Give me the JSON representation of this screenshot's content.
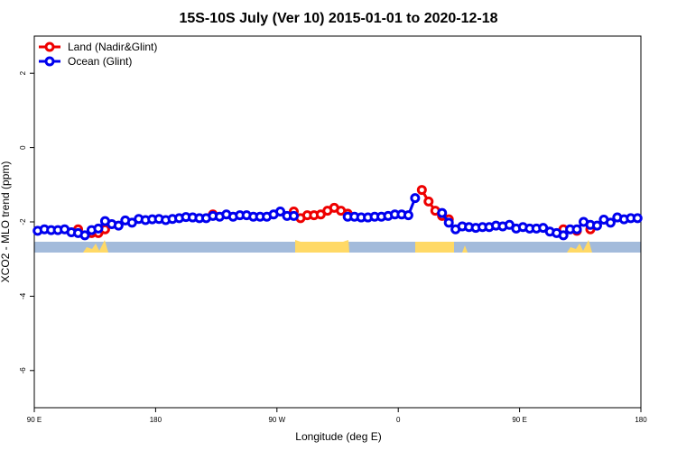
{
  "chart_data": {
    "type": "line",
    "title": "15S-10S July (Ver 10)   2015-01-01 to 2020-12-18",
    "x_label": "Longitude (deg E)",
    "y_label": "XCO2 - MLO trend (ppm)",
    "legend": "topleft",
    "xlim": [
      90,
      540
    ],
    "ylim": [
      -7,
      3
    ],
    "xticks": [
      {
        "value": 90,
        "label": "90 E"
      },
      180,
      {
        "value": 270,
        "label": "90 W"
      },
      {
        "value": 360,
        "label": "0"
      },
      {
        "value": 450,
        "label": "90 E"
      },
      {
        "value": 540,
        "label": "180"
      }
    ],
    "yticks": [
      -6,
      -4,
      -2,
      0,
      2
    ],
    "x": [
      92.5,
      97.5,
      102.5,
      107.5,
      112.5,
      117.5,
      122.5,
      127.5,
      132.5,
      137.5,
      142.5,
      147.5,
      152.5,
      157.5,
      162.5,
      167.5,
      172.5,
      177.5,
      182.5,
      187.5,
      192.5,
      197.5,
      202.5,
      207.5,
      212.5,
      217.5,
      222.5,
      227.5,
      232.5,
      237.5,
      242.5,
      247.5,
      252.5,
      257.5,
      262.5,
      267.5,
      272.5,
      277.5,
      282.5,
      287.5,
      292.5,
      297.5,
      302.5,
      307.5,
      312.5,
      317.5,
      322.5,
      327.5,
      332.5,
      337.5,
      342.5,
      347.5,
      352.5,
      357.5,
      362.5,
      367.5,
      372.5,
      377.5,
      382.5,
      387.5,
      392.5,
      397.5,
      402.5,
      407.5,
      412.5,
      417.5,
      422.5,
      427.5,
      432.5,
      437.5,
      442.5,
      447.5,
      452.5,
      457.5,
      462.5,
      467.5,
      472.5,
      477.5,
      482.5,
      487.5,
      492.5,
      497.5,
      502.5,
      507.5,
      512.5,
      517.5,
      522.5,
      527.5,
      532.5,
      537.5
    ],
    "series": [
      {
        "name": "Land (Nadir&Glint)",
        "color": "#ee0000",
        "values": [
          null,
          null,
          null,
          null,
          null,
          null,
          -2.2,
          null,
          -2.3,
          -2.3,
          -2.2,
          null,
          null,
          null,
          null,
          null,
          null,
          null,
          null,
          null,
          null,
          null,
          null,
          null,
          null,
          null,
          -1.8,
          null,
          null,
          null,
          null,
          null,
          null,
          null,
          null,
          null,
          null,
          null,
          -1.72,
          -1.9,
          -1.82,
          -1.82,
          -1.8,
          -1.7,
          -1.62,
          -1.7,
          -1.78,
          null,
          null,
          null,
          null,
          null,
          null,
          null,
          null,
          null,
          null,
          -1.14,
          -1.45,
          -1.7,
          -1.84,
          -1.93,
          null,
          null,
          null,
          null,
          null,
          null,
          null,
          null,
          null,
          null,
          null,
          null,
          null,
          null,
          null,
          null,
          -2.2,
          null,
          -2.24,
          null,
          -2.2,
          null,
          null,
          null,
          null,
          null,
          null,
          null
        ]
      },
      {
        "name": "Ocean (Glint)",
        "color": "#0000ee",
        "values": [
          -2.24,
          -2.2,
          -2.22,
          -2.22,
          -2.2,
          -2.28,
          -2.3,
          -2.36,
          -2.22,
          -2.18,
          -1.98,
          -2.06,
          -2.1,
          -1.96,
          -2.02,
          -1.92,
          -1.95,
          -1.93,
          -1.92,
          -1.95,
          -1.92,
          -1.9,
          -1.87,
          -1.88,
          -1.9,
          -1.9,
          -1.84,
          -1.86,
          -1.8,
          -1.86,
          -1.82,
          -1.82,
          -1.86,
          -1.86,
          -1.86,
          -1.8,
          -1.72,
          -1.84,
          -1.84,
          null,
          null,
          null,
          null,
          null,
          null,
          null,
          -1.86,
          -1.86,
          -1.88,
          -1.88,
          -1.86,
          -1.86,
          -1.84,
          -1.8,
          -1.8,
          -1.82,
          -1.36,
          null,
          null,
          null,
          -1.76,
          -2.02,
          -2.2,
          -2.12,
          -2.14,
          -2.16,
          -2.14,
          -2.14,
          -2.1,
          -2.12,
          -2.08,
          -2.18,
          -2.14,
          -2.18,
          -2.18,
          -2.16,
          -2.26,
          -2.3,
          -2.36,
          -2.2,
          -2.2,
          -2.0,
          -2.08,
          -2.1,
          -1.94,
          -2.02,
          -1.88,
          -1.93,
          -1.9,
          -1.9
        ]
      }
    ]
  }
}
